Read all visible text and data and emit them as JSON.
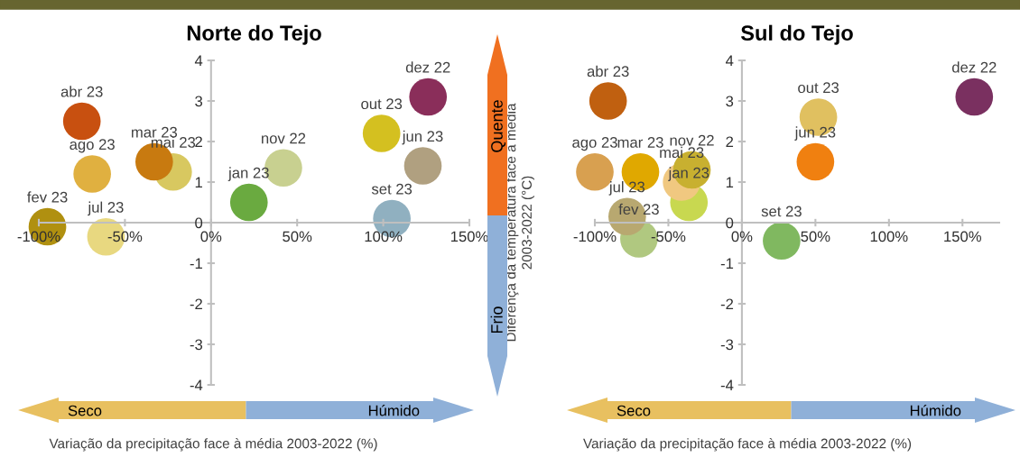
{
  "chart_data": [
    {
      "type": "scatter",
      "title": "Norte do Tejo",
      "xlabel": "Variação da precipitação face à média 2003-2022 (%)",
      "x": [
        126,
        99,
        -75,
        -33,
        -22,
        -69,
        42,
        123,
        22,
        105,
        -95,
        -61
      ],
      "values": [
        3.1,
        2.2,
        2.5,
        1.5,
        1.25,
        1.2,
        1.35,
        1.4,
        0.5,
        0.1,
        -0.1,
        -0.35
      ],
      "colors": [
        "#8a2e5a",
        "#d4c020",
        "#c85010",
        "#c87a10",
        "#d8c860",
        "#e0b040",
        "#c8d090",
        "#b0a080",
        "#6aaa40",
        "#90b0c0",
        "#b09010",
        "#e8d880"
      ],
      "xlim": [
        -100,
        150
      ],
      "ylim": [
        -4,
        4
      ],
      "xticks": [
        {
          "value": -100,
          "label": "-100%"
        },
        {
          "value": -50,
          "label": "-50%"
        },
        {
          "value": 0,
          "label": "0%"
        },
        {
          "value": 50,
          "label": "50%"
        },
        {
          "value": 100,
          "label": "100%"
        },
        {
          "value": 150,
          "label": "150%"
        }
      ],
      "yticks": [
        -4,
        -3,
        -2,
        -1,
        0,
        1,
        2,
        3,
        4
      ],
      "annotations": [
        "Seco",
        "Húmido",
        {
          "text": "dez 22",
          "x": 126,
          "y": 3.1
        },
        {
          "text": "out 23",
          "x": 99,
          "y": 2.2
        },
        {
          "text": "abr 23",
          "x": -75,
          "y": 2.5
        },
        {
          "text": "mar 23",
          "x": -33,
          "y": 1.5
        },
        {
          "text": "mai 23",
          "x": -22,
          "y": 1.25
        },
        {
          "text": "ago 23",
          "x": -69,
          "y": 1.2
        },
        {
          "text": "nov 22",
          "x": 42,
          "y": 1.35
        },
        {
          "text": "jun 23",
          "x": 123,
          "y": 1.4
        },
        {
          "text": "jan 23",
          "x": 22,
          "y": 0.5
        },
        {
          "text": "set 23",
          "x": 105,
          "y": 0.1
        },
        {
          "text": "fev 23",
          "x": -95,
          "y": -0.1
        },
        {
          "text": "jul 23",
          "x": -61,
          "y": -0.35
        }
      ]
    },
    {
      "type": "scatter",
      "title": "Sul do Tejo",
      "xlabel": "Variação da precipitação face à média 2003-2022 (%)",
      "ylabel": "Diferença da temperatura face à média\n2003-2022 (°C)",
      "x": [
        -91,
        158,
        52,
        50,
        -100,
        -69,
        -34,
        -41,
        -36,
        -78,
        -70,
        27
      ],
      "values": [
        3.0,
        3.1,
        2.6,
        1.5,
        1.25,
        1.25,
        1.3,
        1.0,
        0.5,
        0.15,
        -0.4,
        -0.45
      ],
      "colors": [
        "#c06010",
        "#7a3060",
        "#e0c060",
        "#f08010",
        "#d8a050",
        "#e0a800",
        "#c8b030",
        "#f0c880",
        "#c8d850",
        "#b8a870",
        "#b0c880",
        "#80b860"
      ],
      "xlim": [
        -100,
        175
      ],
      "ylim": [
        -4,
        4
      ],
      "xticks": [
        {
          "value": -100,
          "label": "-100%"
        },
        {
          "value": -50,
          "label": "-50%"
        },
        {
          "value": 0,
          "label": "0%"
        },
        {
          "value": 50,
          "label": "50%"
        },
        {
          "value": 100,
          "label": "100%"
        },
        {
          "value": 150,
          "label": "150%"
        }
      ],
      "yticks": [
        -4,
        -3,
        -2,
        -1,
        0,
        1,
        2,
        3,
        4
      ],
      "annotations": [
        "Seco",
        "Húmido",
        "Frio",
        "Quente",
        {
          "text": "abr 23",
          "x": -91,
          "y": 3.0
        },
        {
          "text": "dez 22",
          "x": 158,
          "y": 3.1
        },
        {
          "text": "out 23",
          "x": 52,
          "y": 2.6
        },
        {
          "text": "jun 23",
          "x": 50,
          "y": 1.5
        },
        {
          "text": "ago 23",
          "x": -100,
          "y": 1.25
        },
        {
          "text": "mar 23",
          "x": -69,
          "y": 1.25
        },
        {
          "text": "nov 22",
          "x": -34,
          "y": 1.3
        },
        {
          "text": "mai 23",
          "x": -41,
          "y": 1.0
        },
        {
          "text": "jan 23",
          "x": -36,
          "y": 0.5
        },
        {
          "text": "jul 23",
          "x": -78,
          "y": 0.15
        },
        {
          "text": "fev 23",
          "x": -70,
          "y": -0.4
        },
        {
          "text": "set 23",
          "x": 27,
          "y": -0.45
        }
      ]
    }
  ]
}
